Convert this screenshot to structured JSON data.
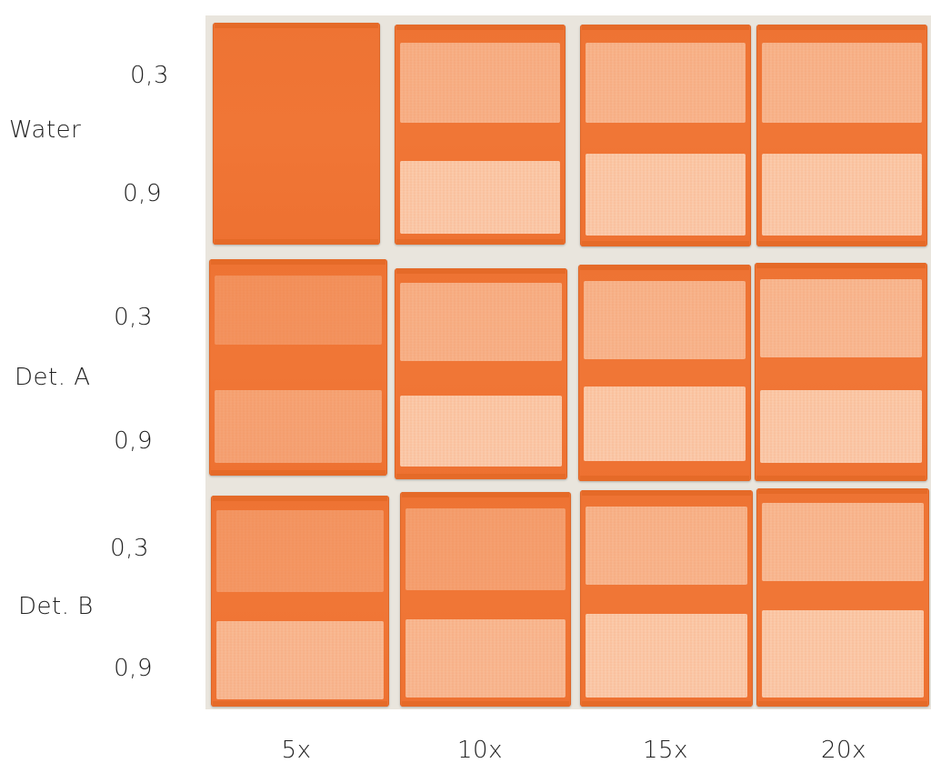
{
  "row_groups": [
    {
      "name": "Water",
      "upper": "0,3",
      "lower": "0,9"
    },
    {
      "name": "Det. A",
      "upper": "0,3",
      "lower": "0,9"
    },
    {
      "name": "Det. B",
      "upper": "0,3",
      "lower": "0,9"
    }
  ],
  "columns": [
    "5x",
    "10x",
    "15x",
    "20x"
  ],
  "colors": {
    "tile_orange": "#ef7434",
    "worn_area": "#f9caa6",
    "background": "#e9e5dd"
  }
}
